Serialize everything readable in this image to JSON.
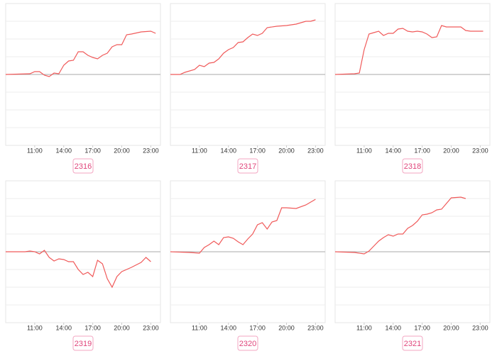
{
  "chart_data": [
    {
      "type": "line",
      "title": "2316",
      "xlim": [
        8,
        24
      ],
      "ylim": [
        -100,
        100
      ],
      "yticks": [
        -75,
        -50,
        -25,
        0,
        25,
        50,
        75
      ],
      "grid": true,
      "xticks": [
        {
          "value": 11,
          "label": "11:00"
        },
        {
          "value": 14,
          "label": "14:00"
        },
        {
          "value": 17,
          "label": "17:00"
        },
        {
          "value": 20,
          "label": "20:00"
        },
        {
          "value": 23,
          "label": "23:00"
        }
      ],
      "x": [
        8,
        10.5,
        11,
        11.5,
        12,
        12.5,
        13,
        13.5,
        14,
        14.5,
        15,
        15.5,
        16,
        16.5,
        17,
        17.5,
        18,
        18.5,
        19,
        19.5,
        20,
        20.5,
        21,
        22,
        23,
        23.5
      ],
      "series": [
        {
          "color": "#f05a5a",
          "values": [
            0,
            1,
            4,
            4,
            -1,
            -3,
            2,
            1,
            13,
            19,
            20,
            32,
            32,
            27,
            24,
            22,
            27,
            30,
            39,
            42,
            42,
            56,
            57,
            60,
            61,
            58
          ]
        }
      ]
    },
    {
      "type": "line",
      "title": "2317",
      "xlim": [
        8,
        24
      ],
      "ylim": [
        -100,
        100
      ],
      "yticks": [
        -75,
        -50,
        -25,
        0,
        25,
        50,
        75
      ],
      "grid": true,
      "xticks": [
        {
          "value": 11,
          "label": "11:00"
        },
        {
          "value": 14,
          "label": "14:00"
        },
        {
          "value": 17,
          "label": "17:00"
        },
        {
          "value": 20,
          "label": "20:00"
        },
        {
          "value": 23,
          "label": "23:00"
        }
      ],
      "x": [
        8,
        9,
        9.5,
        10.5,
        11,
        11.5,
        12,
        12.5,
        13,
        13.5,
        14,
        14.5,
        15,
        15.5,
        16,
        16.5,
        17,
        17.5,
        18,
        19,
        20,
        21,
        22,
        22.5,
        23
      ],
      "series": [
        {
          "color": "#f05a5a",
          "values": [
            0,
            0,
            3,
            7,
            13,
            11,
            16,
            17,
            22,
            30,
            35,
            38,
            45,
            46,
            52,
            57,
            55,
            58,
            66,
            68,
            69,
            71,
            75,
            75,
            77
          ]
        }
      ]
    },
    {
      "type": "line",
      "title": "2318",
      "xlim": [
        8,
        24
      ],
      "ylim": [
        -100,
        100
      ],
      "yticks": [
        -75,
        -50,
        -25,
        0,
        25,
        50,
        75
      ],
      "grid": true,
      "xticks": [
        {
          "value": 11,
          "label": "11:00"
        },
        {
          "value": 14,
          "label": "14:00"
        },
        {
          "value": 17,
          "label": "17:00"
        },
        {
          "value": 20,
          "label": "20:00"
        },
        {
          "value": 23,
          "label": "23:00"
        }
      ],
      "x": [
        8,
        10,
        10.5,
        11,
        11.5,
        12,
        12.5,
        13,
        13.5,
        14,
        14.5,
        15,
        15.5,
        16,
        16.5,
        17,
        17.5,
        18,
        18.5,
        19,
        19.5,
        20,
        21,
        21.5,
        22,
        23.3
      ],
      "series": [
        {
          "color": "#f05a5a",
          "values": [
            0,
            1,
            2,
            35,
            57,
            59,
            61,
            55,
            58,
            58,
            64,
            65,
            61,
            60,
            61,
            60,
            57,
            52,
            53,
            69,
            67,
            67,
            67,
            62,
            61,
            61
          ]
        }
      ]
    },
    {
      "type": "line",
      "title": "2319",
      "xlim": [
        8,
        24
      ],
      "ylim": [
        -100,
        100
      ],
      "yticks": [
        -75,
        -50,
        -25,
        0,
        25,
        50,
        75
      ],
      "grid": true,
      "xticks": [
        {
          "value": 11,
          "label": "11:00"
        },
        {
          "value": 14,
          "label": "14:00"
        },
        {
          "value": 17,
          "label": "17:00"
        },
        {
          "value": 20,
          "label": "20:00"
        },
        {
          "value": 23,
          "label": "23:00"
        }
      ],
      "x": [
        8,
        10,
        10.5,
        11,
        11.5,
        12,
        12.5,
        13,
        13.5,
        14,
        14.5,
        15,
        15.5,
        16,
        16.5,
        17,
        17.5,
        18,
        18.5,
        19,
        19.5,
        20,
        21,
        22,
        22.5,
        23
      ],
      "series": [
        {
          "color": "#f05a5a",
          "values": [
            0,
            0,
            1,
            0,
            -3,
            2,
            -8,
            -13,
            -10,
            -11,
            -14,
            -14,
            -25,
            -32,
            -29,
            -35,
            -12,
            -17,
            -38,
            -50,
            -35,
            -28,
            -22,
            -15,
            -8,
            -14
          ]
        }
      ]
    },
    {
      "type": "line",
      "title": "2320",
      "xlim": [
        8,
        24
      ],
      "ylim": [
        -100,
        100
      ],
      "yticks": [
        -75,
        -50,
        -25,
        0,
        25,
        50,
        75
      ],
      "grid": true,
      "xticks": [
        {
          "value": 11,
          "label": "11:00"
        },
        {
          "value": 14,
          "label": "14:00"
        },
        {
          "value": 17,
          "label": "17:00"
        },
        {
          "value": 20,
          "label": "20:00"
        },
        {
          "value": 23,
          "label": "23:00"
        }
      ],
      "x": [
        8,
        10,
        11,
        11.5,
        12,
        12.5,
        13,
        13.5,
        14,
        14.5,
        15,
        15.5,
        16,
        16.5,
        17,
        17.5,
        18,
        18.5,
        19,
        19.5,
        20,
        21,
        22,
        23
      ],
      "series": [
        {
          "color": "#f05a5a",
          "values": [
            0,
            -1,
            -2,
            6,
            10,
            15,
            10,
            20,
            21,
            19,
            14,
            10,
            18,
            25,
            38,
            41,
            32,
            42,
            44,
            62,
            62,
            61,
            66,
            74
          ]
        }
      ]
    },
    {
      "type": "line",
      "title": "2321",
      "xlim": [
        8,
        24
      ],
      "ylim": [
        -100,
        100
      ],
      "yticks": [
        -75,
        -50,
        -25,
        0,
        25,
        50,
        75
      ],
      "grid": true,
      "xticks": [
        {
          "value": 11,
          "label": "11:00"
        },
        {
          "value": 14,
          "label": "14:00"
        },
        {
          "value": 17,
          "label": "17:00"
        },
        {
          "value": 20,
          "label": "20:00"
        },
        {
          "value": 23,
          "label": "23:00"
        }
      ],
      "x": [
        8,
        10,
        11,
        11.5,
        12,
        12.5,
        13,
        13.5,
        14,
        14.5,
        15,
        15.5,
        16,
        16.5,
        17,
        17.5,
        18,
        18.5,
        19,
        19.5,
        20,
        21,
        21.5
      ],
      "series": [
        {
          "color": "#f05a5a",
          "values": [
            0,
            -1,
            -3,
            1,
            8,
            15,
            20,
            24,
            22,
            25,
            25,
            33,
            37,
            43,
            52,
            53,
            55,
            59,
            60,
            68,
            76,
            77,
            75
          ]
        }
      ]
    }
  ]
}
